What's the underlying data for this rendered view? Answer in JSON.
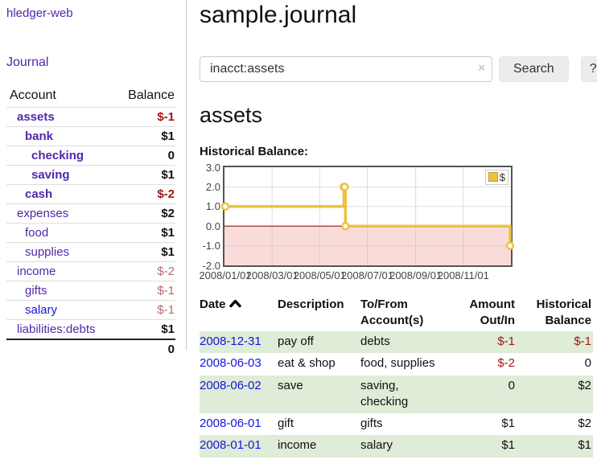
{
  "app": {
    "brand": "hledger-web"
  },
  "colors": {
    "link_purple": "#5128a9",
    "link_blue": "#1414e0",
    "negative_strong": "#a01616",
    "negative_soft": "#b56a6e",
    "row_shade_green": "#dfecd7",
    "chart_line_gold": "#edc240",
    "chart_negative_fill": "#f9dcda",
    "chart_zero_line": "#8f1a1a",
    "button_bg": "#ececec"
  },
  "sidebar": {
    "nav": {
      "journal": "Journal"
    },
    "table": {
      "headers": {
        "account": "Account",
        "balance": "Balance"
      },
      "rows": [
        {
          "account": "assets",
          "balance": "$-1",
          "depth": 1,
          "bold": true,
          "neg": "strong"
        },
        {
          "account": "bank",
          "balance": "$1",
          "depth": 2,
          "bold": true
        },
        {
          "account": "checking",
          "balance": "0",
          "depth": 3,
          "bold": true
        },
        {
          "account": "saving",
          "balance": "$1",
          "depth": 3,
          "bold": true
        },
        {
          "account": "cash",
          "balance": "$-2",
          "depth": 2,
          "bold": true,
          "neg": "strong"
        },
        {
          "account": "expenses",
          "balance": "$2",
          "depth": 1
        },
        {
          "account": "food",
          "balance": "$1",
          "depth": 2
        },
        {
          "account": "supplies",
          "balance": "$1",
          "depth": 2
        },
        {
          "account": "income",
          "balance": "$-2",
          "depth": 1,
          "neg": "soft"
        },
        {
          "account": "gifts",
          "balance": "$-1",
          "depth": 2,
          "neg": "soft"
        },
        {
          "account": "salary",
          "balance": "$-1",
          "depth": 2,
          "neg": "soft",
          "link": "blue"
        },
        {
          "account": "liabilities:debts",
          "balance": "$1",
          "depth": 1
        }
      ],
      "total": "0"
    }
  },
  "header": {
    "title": "sample.journal"
  },
  "search": {
    "value": "inacct:assets",
    "clear_icon": "×",
    "button_label": "Search",
    "help_label": "?"
  },
  "account_page": {
    "heading": "assets",
    "chart_label": "Historical Balance:"
  },
  "chart_data": {
    "type": "line",
    "title": "Historical Balance",
    "series": [
      {
        "name": "$",
        "style": "step",
        "points": [
          {
            "x": "2008-01-01",
            "y": 1
          },
          {
            "x": "2008-06-01",
            "y": 2
          },
          {
            "x": "2008-06-02",
            "y": 2
          },
          {
            "x": "2008-06-03",
            "y": 0
          },
          {
            "x": "2008-12-31",
            "y": -1
          }
        ]
      }
    ],
    "xrange": [
      "2008-01-01",
      "2008-12-31"
    ],
    "ylim": [
      -2,
      3
    ],
    "yticks": [
      3,
      2,
      1,
      0,
      -1,
      -2
    ],
    "ytick_labels": [
      "3.0",
      "2.0",
      "1.0",
      "0.0",
      "-1.0",
      "-2.0"
    ],
    "xticks": [
      "2008-01-01",
      "2008-03-01",
      "2008-05-01",
      "2008-07-01",
      "2008-09-01",
      "2008-11-01"
    ],
    "xtick_labels": [
      "2008/01/01",
      "2008/03/01",
      "2008/05/01",
      "2008/07/01",
      "2008/09/01",
      "2008/11/01"
    ],
    "legend": {
      "label": "$",
      "position": "top-right"
    },
    "grid": true,
    "negative_region_shaded": true,
    "zero_line": true
  },
  "register": {
    "headers": {
      "date": "Date",
      "description": "Description",
      "accounts": "To/From Account(s)",
      "amount": "Amount Out/In",
      "balance": "Historical Balance"
    },
    "rows": [
      {
        "date": "2008-12-31",
        "description": "pay off",
        "accounts": "debts",
        "amount": "$-1",
        "amount_neg": true,
        "balance": "$-1",
        "balance_neg": true,
        "shaded": true
      },
      {
        "date": "2008-06-03",
        "description": "eat & shop",
        "accounts": "food, supplies",
        "amount": "$-2",
        "amount_neg": true,
        "balance": "0",
        "balance_neg": false,
        "shaded": false
      },
      {
        "date": "2008-06-02",
        "description": "save",
        "accounts": "saving,\nchecking",
        "amount": "0",
        "amount_neg": false,
        "balance": "$2",
        "balance_neg": false,
        "shaded": true
      },
      {
        "date": "2008-06-01",
        "description": "gift",
        "accounts": "gifts",
        "amount": "$1",
        "amount_neg": false,
        "balance": "$2",
        "balance_neg": false,
        "shaded": false
      },
      {
        "date": "2008-01-01",
        "description": "income",
        "accounts": "salary",
        "amount": "$1",
        "amount_neg": false,
        "balance": "$1",
        "balance_neg": false,
        "shaded": true
      }
    ]
  }
}
